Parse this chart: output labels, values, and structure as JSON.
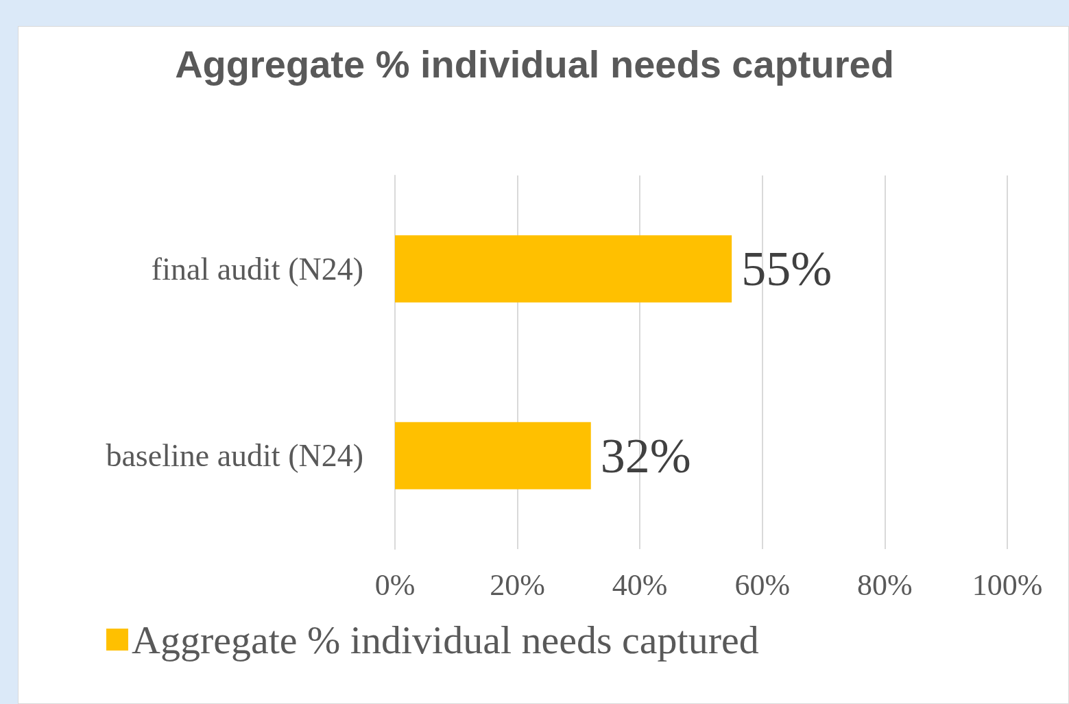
{
  "chart_data": {
    "type": "bar",
    "orientation": "horizontal",
    "title": "Aggregate % individual needs captured",
    "categories": [
      "final audit (N24)",
      "baseline audit (N24)"
    ],
    "series": [
      {
        "name": "Aggregate % individual needs captured",
        "color": "#ffc000",
        "values": [
          55,
          32
        ],
        "value_labels": [
          "55%",
          "32%"
        ]
      }
    ],
    "xlim": [
      0,
      100
    ],
    "xticks": [
      {
        "value": 0,
        "label": "0%"
      },
      {
        "value": 20,
        "label": "20%"
      },
      {
        "value": 40,
        "label": "40%"
      },
      {
        "value": 60,
        "label": "60%"
      },
      {
        "value": 80,
        "label": "80%"
      },
      {
        "value": 100,
        "label": "100%"
      }
    ],
    "grid": "x",
    "legend": "bottom"
  }
}
